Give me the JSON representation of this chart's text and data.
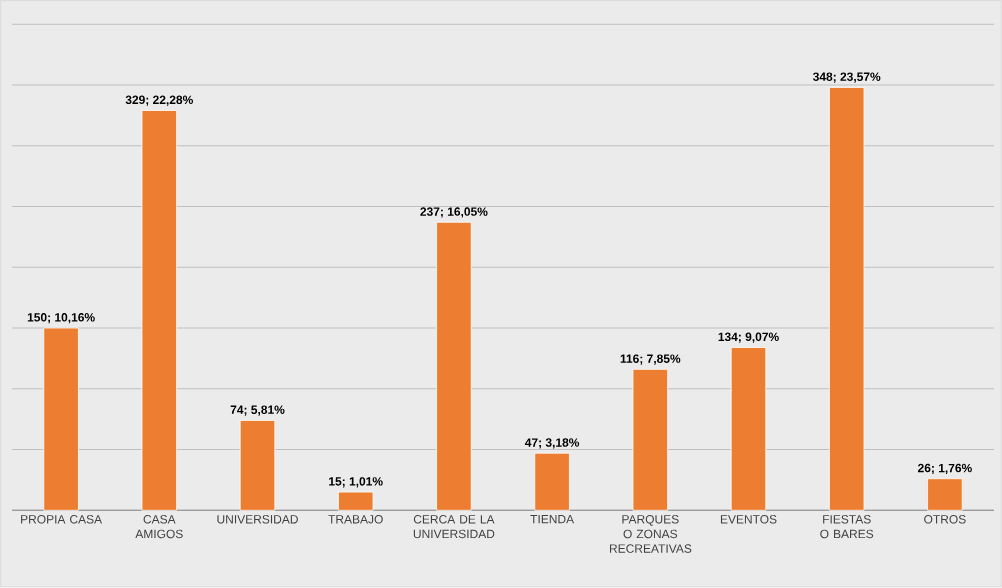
{
  "chart_data": {
    "type": "bar",
    "categories": [
      "PROPIA CASA",
      "CASA AMIGOS",
      "UNIVERSIDAD",
      "TRABAJO",
      "CERCA DE LA UNIVERSIDAD",
      "TIENDA",
      "PARQUES O ZONAS RECREATIVAS",
      "EVENTOS",
      "FIESTAS O BARES",
      "OTROS"
    ],
    "values": [
      150,
      329,
      74,
      15,
      237,
      47,
      116,
      134,
      348,
      26
    ],
    "value_labels": [
      "150; 10,16%",
      "329; 22,28%",
      "74; 5,81%",
      "15; 1,01%",
      "237; 16,05%",
      "47; 3,18%",
      "116; 7,85%",
      "134; 9,07%",
      "348; 23,57%",
      "26; 1,76%"
    ],
    "color": "#ed7d31",
    "grid": "y",
    "tick_labels": "x"
  }
}
